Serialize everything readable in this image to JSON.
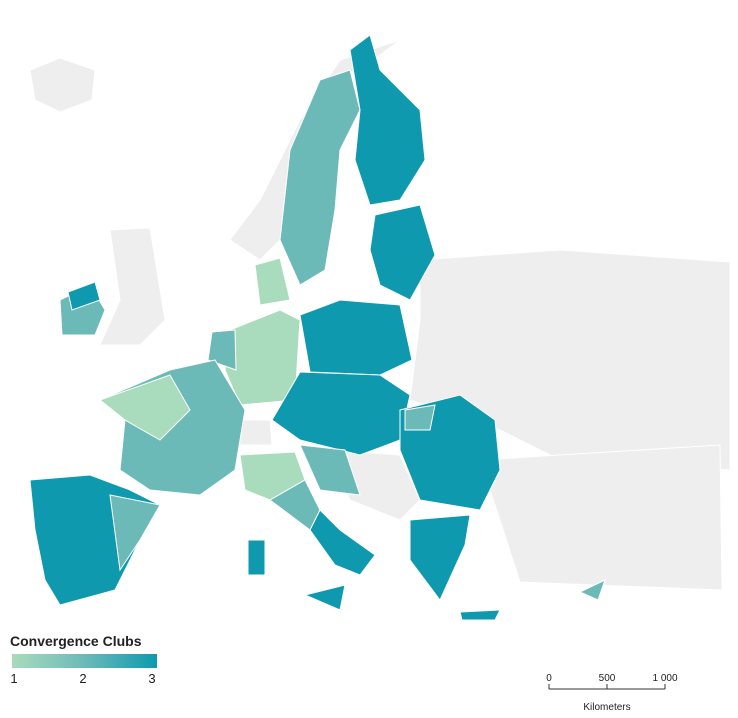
{
  "legend": {
    "title": "Convergence Clubs",
    "labels": [
      1,
      2,
      3
    ],
    "colors": [
      "#a9dbbd",
      "#6cbab8",
      "#0e99ae"
    ]
  },
  "scale_bar": {
    "ticks": [
      0,
      500,
      {
        "value": 1000,
        "label": "1 000"
      }
    ],
    "unit_label": "Kilometers"
  }
}
